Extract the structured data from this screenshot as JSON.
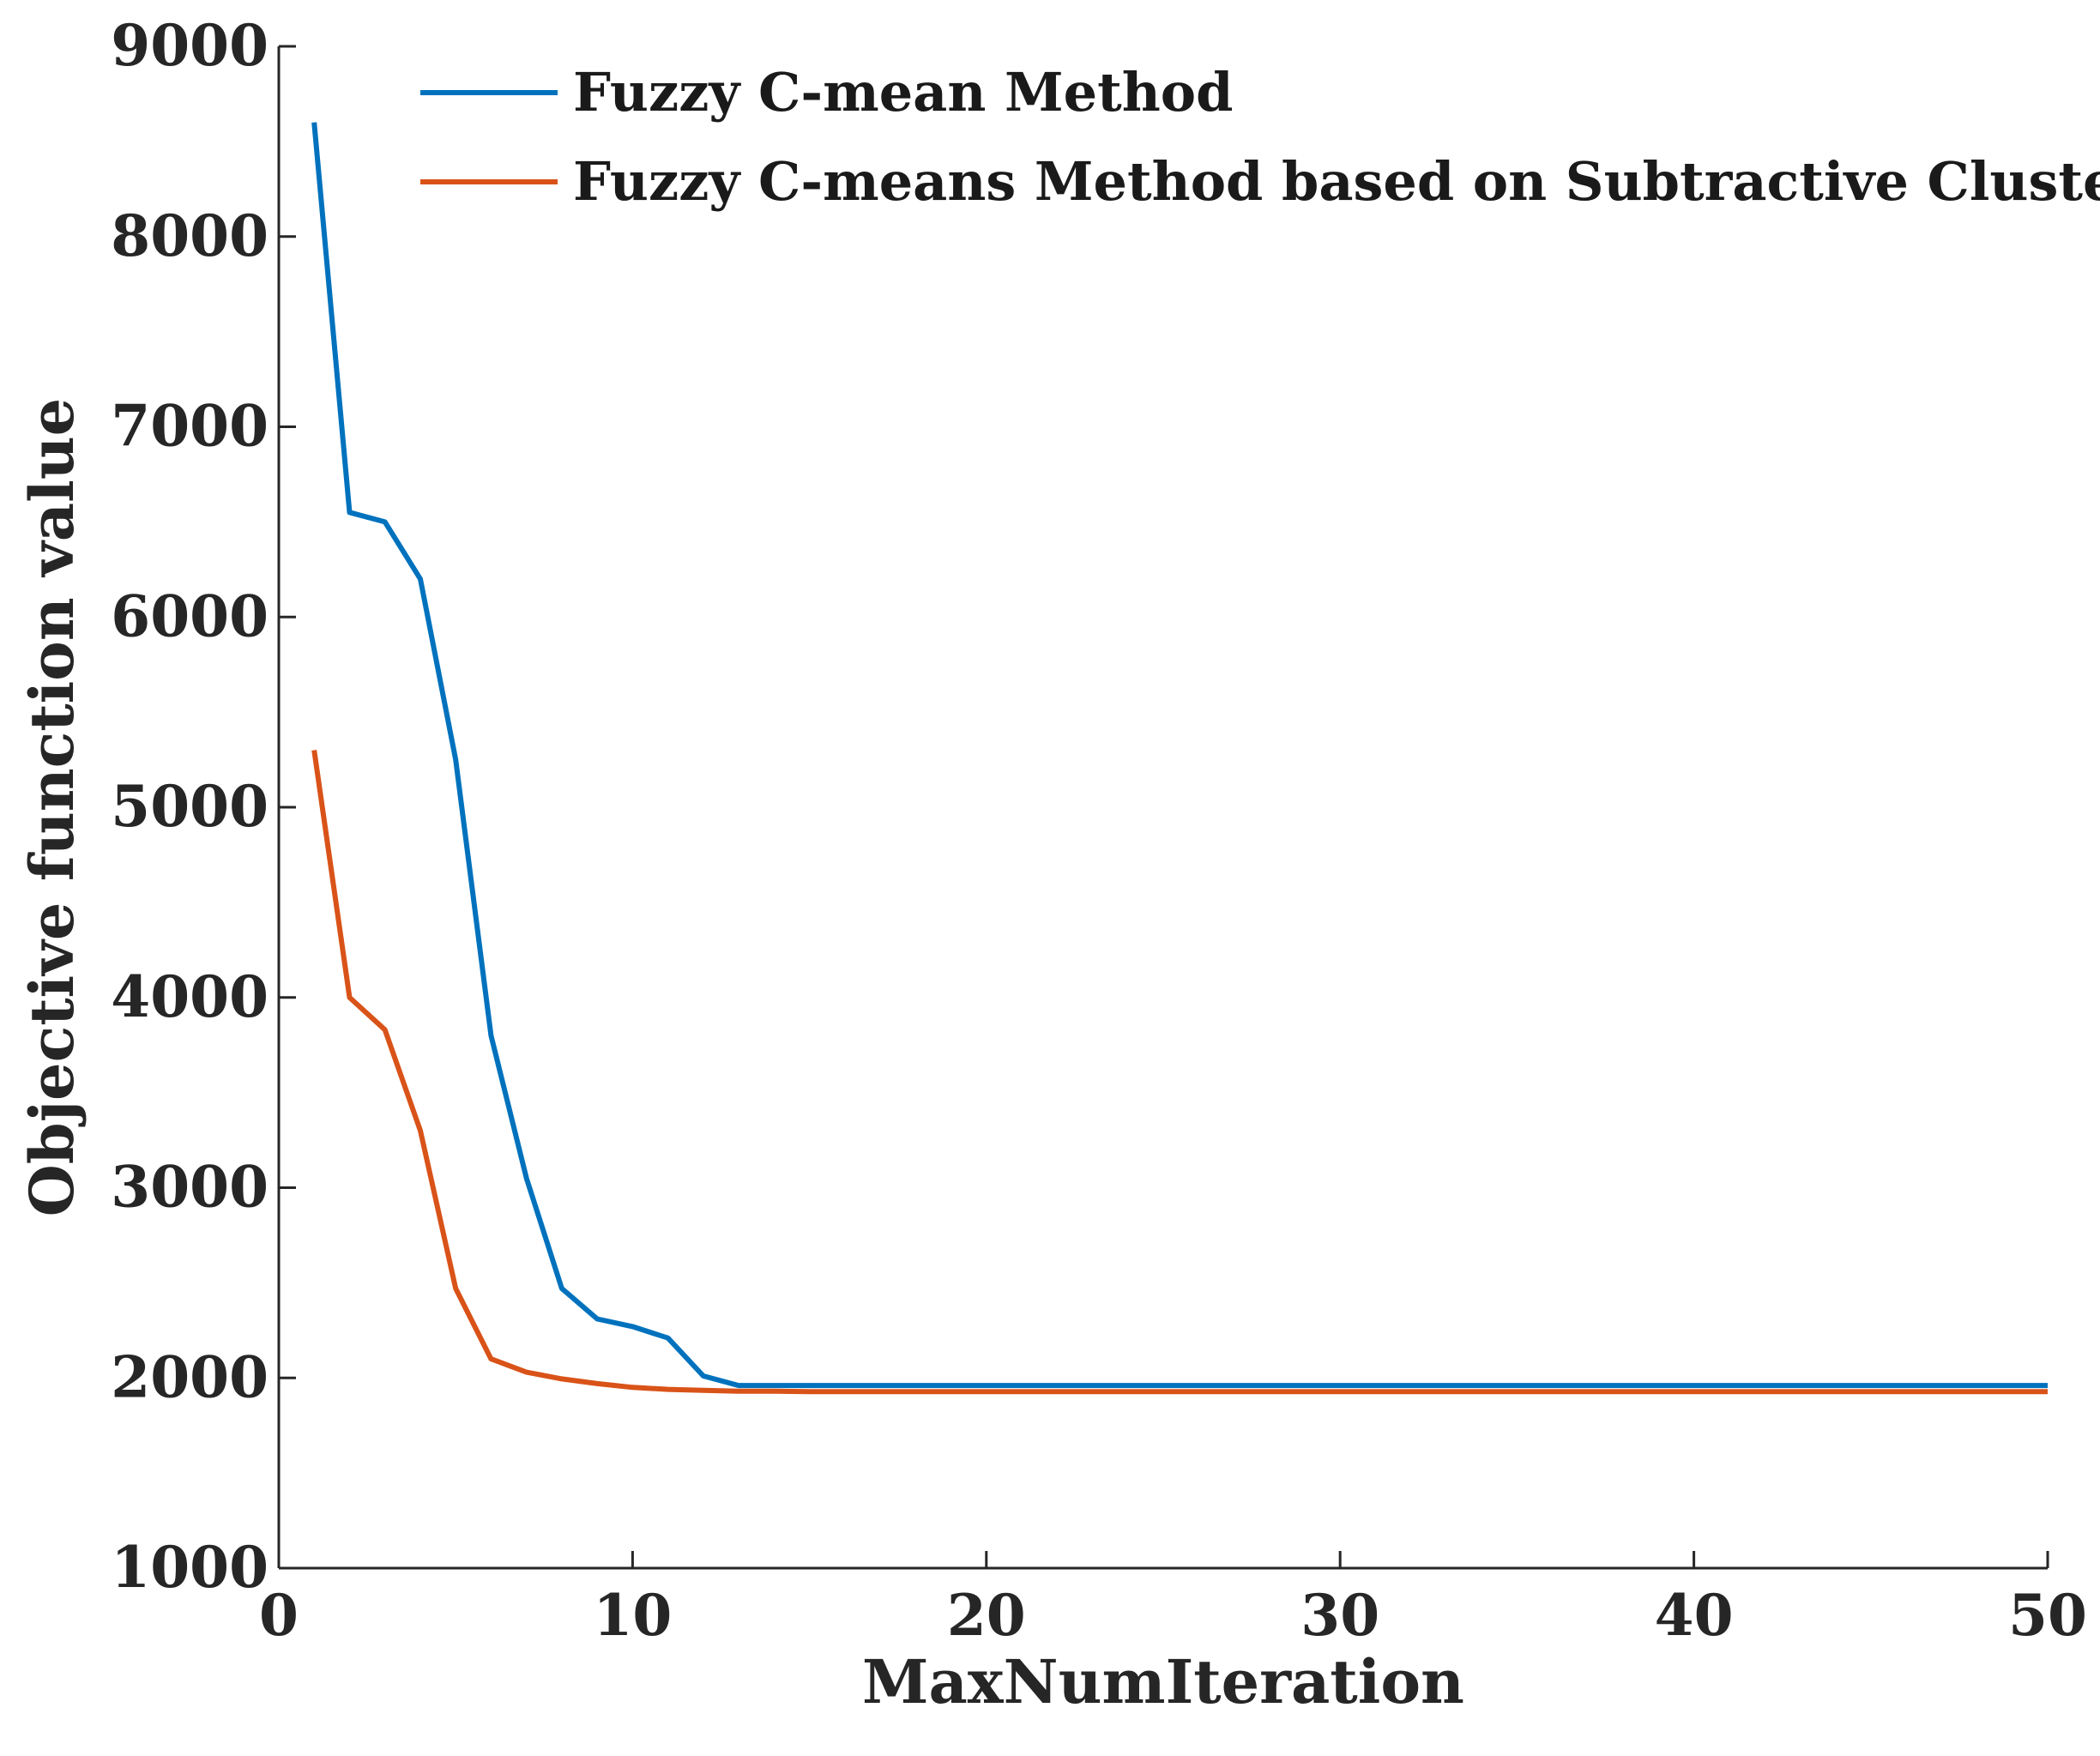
{
  "chart_data": {
    "type": "line",
    "title": "",
    "xlabel": "MaxNumIteration",
    "ylabel": "Objective function value",
    "xlim": [
      0,
      50
    ],
    "ylim": [
      1000,
      9000
    ],
    "xticks": [
      0,
      10,
      20,
      30,
      40,
      50
    ],
    "yticks": [
      1000,
      2000,
      3000,
      4000,
      5000,
      6000,
      7000,
      8000,
      9000
    ],
    "grid": false,
    "legend_position": "top-right",
    "series": [
      {
        "name": "Fuzzy C-mean Method",
        "color": "#0072BD",
        "x": [
          1,
          2,
          3,
          4,
          5,
          6,
          7,
          8,
          9,
          10,
          11,
          12,
          13,
          14,
          15,
          16,
          17,
          18,
          19,
          20,
          21,
          22,
          23,
          24,
          25,
          26,
          27,
          28,
          29,
          30,
          31,
          32,
          33,
          34,
          35,
          36,
          37,
          38,
          39,
          40,
          41,
          42,
          43,
          44,
          45,
          46,
          47,
          48,
          49,
          50
        ],
        "y": [
          8600,
          6550,
          6500,
          6200,
          5250,
          3800,
          3050,
          2470,
          2310,
          2270,
          2210,
          2010,
          1960,
          1960,
          1960,
          1960,
          1960,
          1960,
          1960,
          1960,
          1960,
          1960,
          1960,
          1960,
          1960,
          1960,
          1960,
          1960,
          1960,
          1960,
          1960,
          1960,
          1960,
          1960,
          1960,
          1960,
          1960,
          1960,
          1960,
          1960,
          1960,
          1960,
          1960,
          1960,
          1960,
          1960,
          1960,
          1960,
          1960,
          1960
        ]
      },
      {
        "name": "Fuzzy C-means Method based on Subtractive Clustering",
        "color": "#D95319",
        "x": [
          1,
          2,
          3,
          4,
          5,
          6,
          7,
          8,
          9,
          10,
          11,
          12,
          13,
          14,
          15,
          16,
          17,
          18,
          19,
          20,
          21,
          22,
          23,
          24,
          25,
          26,
          27,
          28,
          29,
          30,
          31,
          32,
          33,
          34,
          35,
          36,
          37,
          38,
          39,
          40,
          41,
          42,
          43,
          44,
          45,
          46,
          47,
          48,
          49,
          50
        ],
        "y": [
          5300,
          4000,
          3830,
          3300,
          2470,
          2100,
          2030,
          1995,
          1970,
          1950,
          1940,
          1935,
          1930,
          1930,
          1928,
          1928,
          1928,
          1928,
          1928,
          1928,
          1928,
          1928,
          1928,
          1928,
          1928,
          1928,
          1928,
          1928,
          1928,
          1928,
          1928,
          1928,
          1928,
          1928,
          1928,
          1928,
          1928,
          1928,
          1928,
          1928,
          1928,
          1928,
          1928,
          1928,
          1928,
          1928,
          1928,
          1928,
          1928,
          1928
        ]
      }
    ]
  }
}
